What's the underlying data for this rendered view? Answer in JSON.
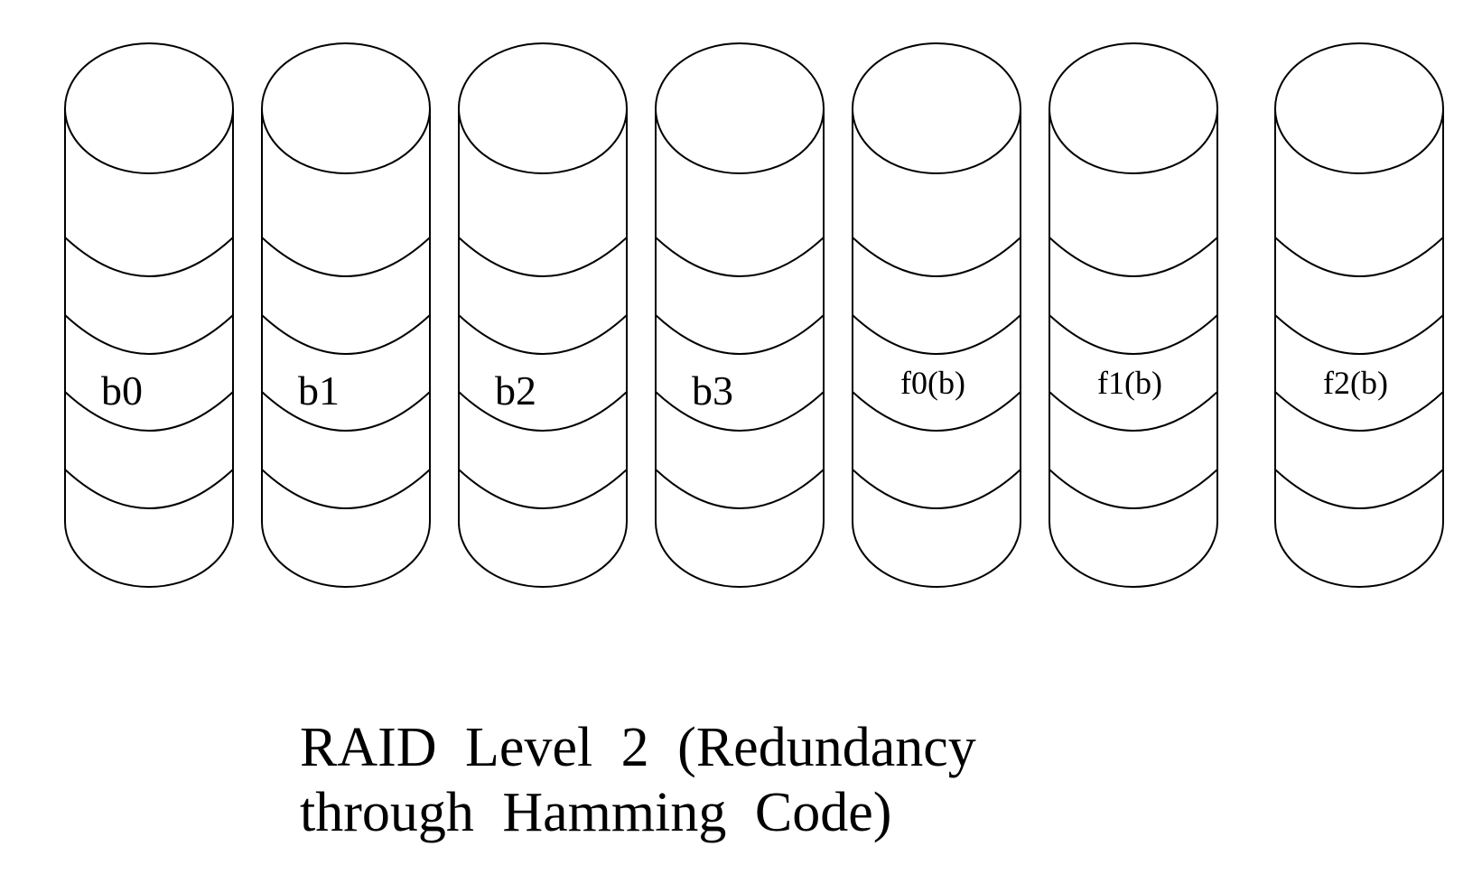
{
  "diagram": {
    "disks": [
      {
        "label": "b0",
        "kind": "data"
      },
      {
        "label": "b1",
        "kind": "data"
      },
      {
        "label": "b2",
        "kind": "data"
      },
      {
        "label": "b3",
        "kind": "data"
      },
      {
        "label": "f0(b)",
        "kind": "parity"
      },
      {
        "label": "f1(b)",
        "kind": "parity"
      },
      {
        "label": "f2(b)",
        "kind": "parity"
      }
    ]
  },
  "caption": {
    "line1": "RAID Level 2 (Redundancy",
    "line2": "through Hamming Code)"
  }
}
